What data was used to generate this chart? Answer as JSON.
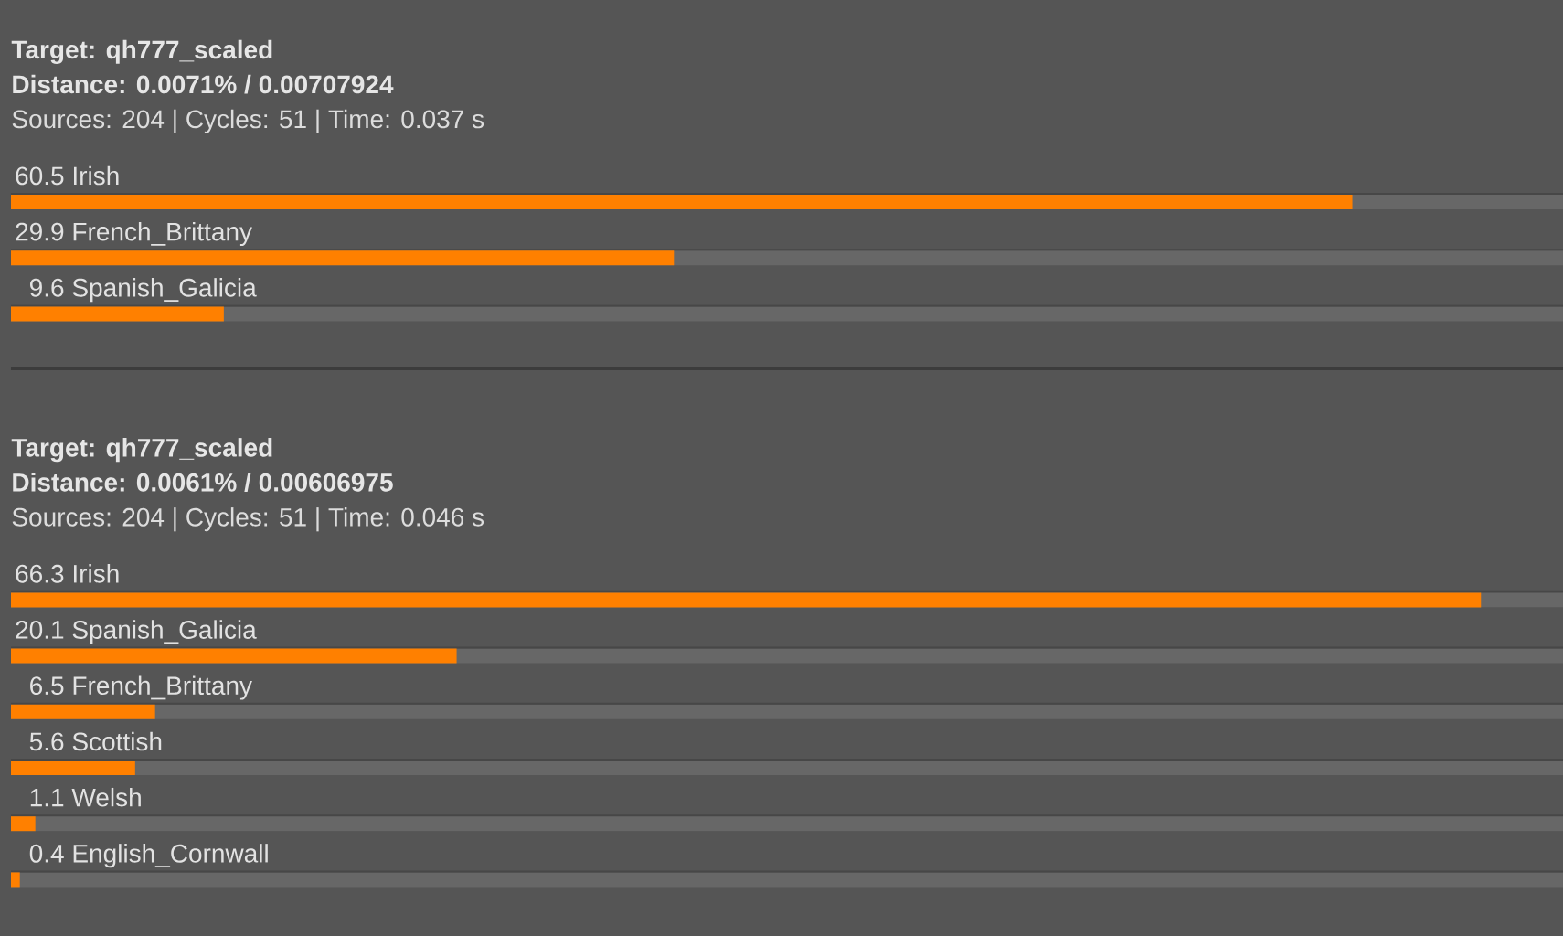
{
  "chart_data": [
    {
      "type": "bar",
      "orientation": "horizontal",
      "title": "Target: qh777_scaled",
      "subtitle": "Distance: 0.0071% / 0.00707924",
      "annotations": [
        "Sources: 204 | Cycles: 51 | Time: 0.037 s"
      ],
      "categories": [
        "Irish",
        "French_Brittany",
        "Spanish_Galicia"
      ],
      "values": [
        60.5,
        29.9,
        9.6
      ],
      "color": "#ff8000",
      "xlim": [
        0,
        70
      ],
      "data_labels": true,
      "tick_labels": "y"
    },
    {
      "type": "bar",
      "orientation": "horizontal",
      "title": "Target: qh777_scaled",
      "subtitle": "Distance: 0.0061% / 0.00606975",
      "annotations": [
        "Sources: 204 | Cycles: 51 | Time: 0.046 s"
      ],
      "categories": [
        "Irish",
        "Spanish_Galicia",
        "French_Brittany",
        "Scottish",
        "Welsh",
        "English_Cornwall"
      ],
      "values": [
        66.3,
        20.1,
        6.5,
        5.6,
        1.1,
        0.4
      ],
      "color": "#ff8000",
      "xlim": [
        0,
        70
      ],
      "data_labels": true,
      "tick_labels": "y"
    }
  ]
}
